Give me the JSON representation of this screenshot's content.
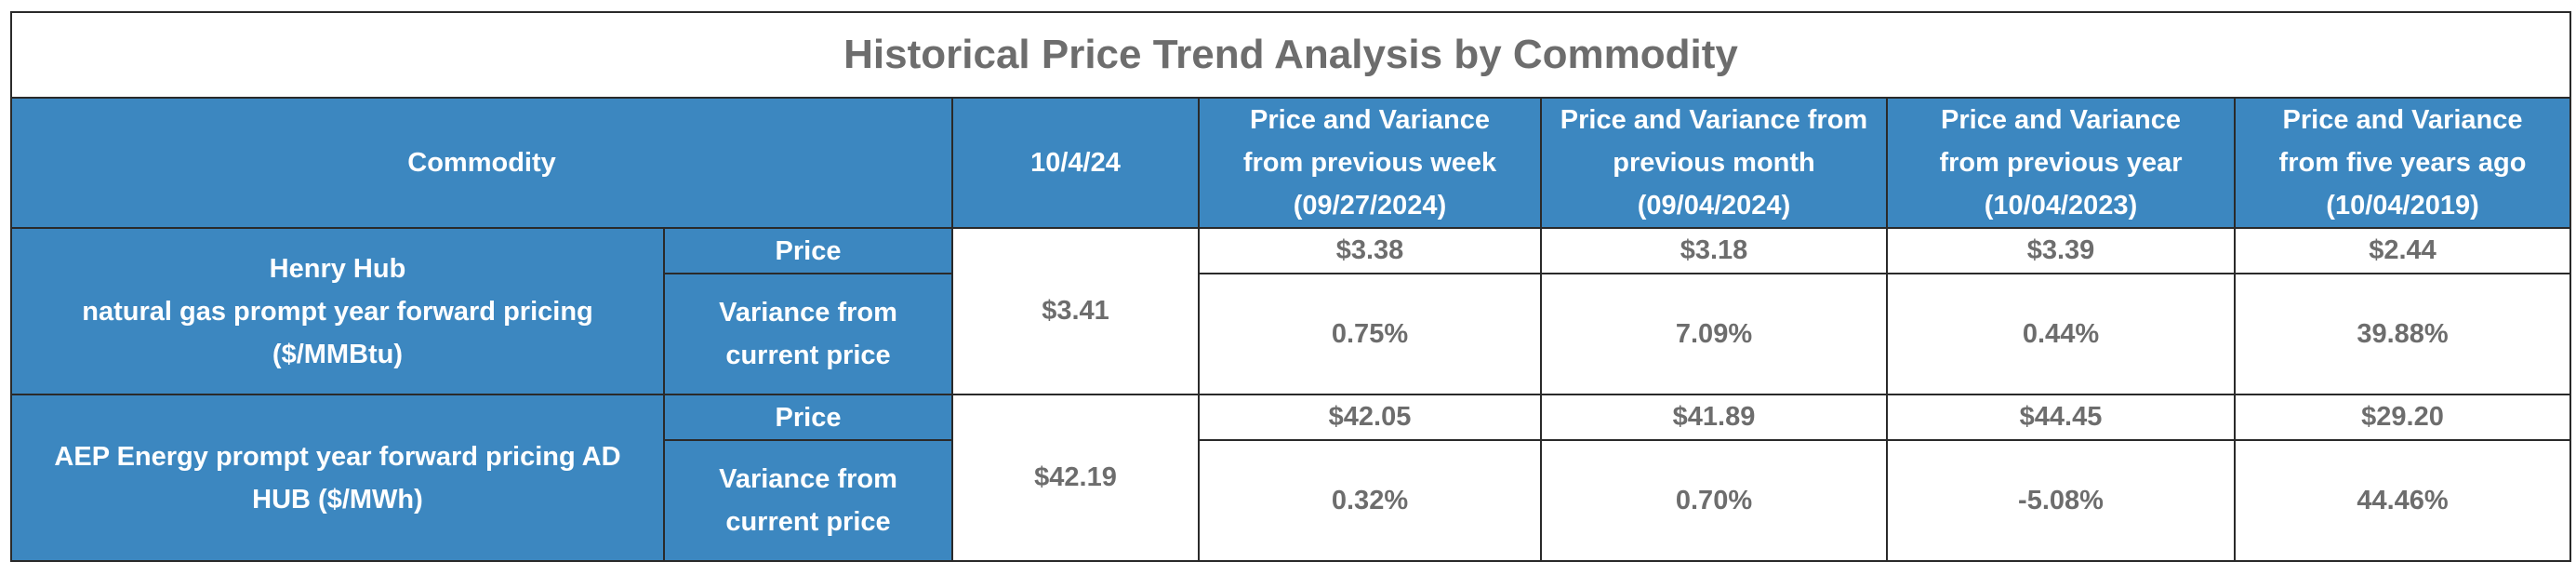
{
  "title": "Historical Price Trend Analysis by Commodity",
  "header": {
    "commodity": "Commodity",
    "date": "10/4/24",
    "columns": [
      [
        "Price and Variance",
        "from previous week",
        "(09/27/2024)"
      ],
      [
        "Price and Variance from",
        "previous month",
        "(09/04/2024)"
      ],
      [
        "Price and Variance",
        "from previous year",
        "(10/04/2023)"
      ],
      [
        "Price and Variance",
        "from five years ago",
        "(10/04/2019)"
      ]
    ]
  },
  "rows": [
    {
      "name_lines": [
        "Henry Hub",
        "natural gas prompt year forward pricing",
        "($/MMBtu)"
      ],
      "price_label": "Price",
      "variance_label": [
        "Variance from",
        "current price"
      ],
      "current": "$3.41",
      "prices": [
        "$3.38",
        "$3.18",
        "$3.39",
        "$2.44"
      ],
      "variances": [
        "0.75%",
        "7.09%",
        "0.44%",
        "39.88%"
      ]
    },
    {
      "name_lines": [
        "AEP Energy prompt year forward pricing AD",
        "HUB ($/MWh)"
      ],
      "price_label": "Price",
      "variance_label": [
        "Variance from",
        "current price"
      ],
      "current": "$42.19",
      "prices": [
        "$42.05",
        "$41.89",
        "$44.45",
        "$29.20"
      ],
      "variances": [
        "0.32%",
        "0.70%",
        "-5.08%",
        "44.46%"
      ]
    }
  ]
}
